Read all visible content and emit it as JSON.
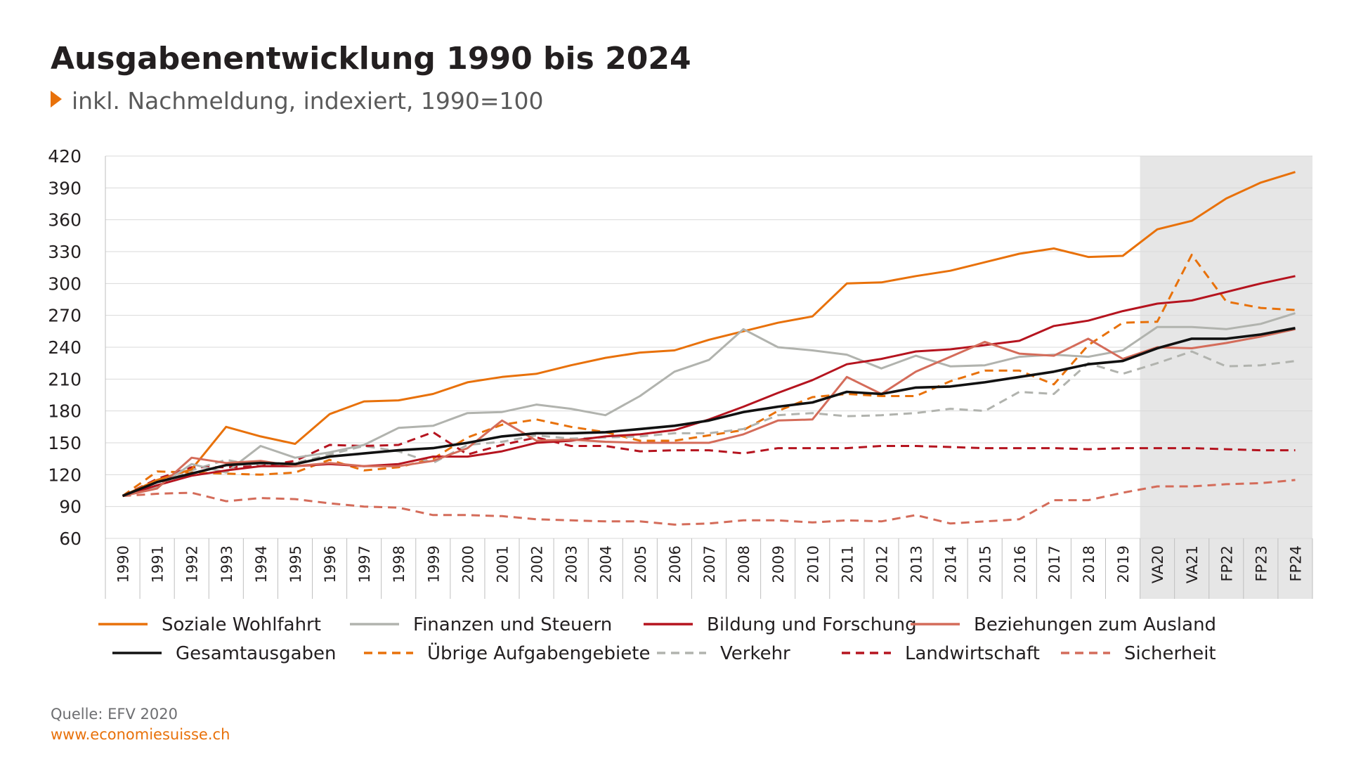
{
  "header": {
    "title": "Ausgabenentwicklung 1990 bis 2024",
    "subtitle": "inkl. Nachmeldung, indexiert, 1990=100"
  },
  "footer": {
    "source": "Quelle: EFV 2020",
    "website": "www.economiesuisse.ch"
  },
  "colors": {
    "orange": "#e8710a",
    "gray": "#b1b3ae",
    "darkred": "#b5141f",
    "salmon": "#d46c5a",
    "black": "#111111",
    "forecast_shade": "#e6e6e6"
  },
  "chart_data": {
    "type": "line",
    "title": "Ausgabenentwicklung 1990 bis 2024",
    "subtitle": "inkl. Nachmeldung, indexiert, 1990=100",
    "categories": [
      "1990",
      "1991",
      "1992",
      "1993",
      "1994",
      "1995",
      "1996",
      "1997",
      "1998",
      "1999",
      "2000",
      "2001",
      "2002",
      "2003",
      "2004",
      "2005",
      "2006",
      "2007",
      "2008",
      "2009",
      "2010",
      "2011",
      "2012",
      "2013",
      "2014",
      "2015",
      "2016",
      "2017",
      "2018",
      "2019",
      "VA20",
      "VA21",
      "FP22",
      "FP23",
      "FP24"
    ],
    "ylim": [
      60,
      420
    ],
    "yticks": [
      60,
      90,
      120,
      150,
      180,
      210,
      240,
      270,
      300,
      330,
      360,
      390,
      420
    ],
    "grid": true,
    "shaded_categories": [
      "VA20",
      "VA21",
      "FP22",
      "FP23",
      "FP24"
    ],
    "legend_position": "bottom",
    "series": [
      {
        "name": "Soziale Wohlfahrt",
        "color": "#e8710a",
        "dash": "solid",
        "values": [
          100,
          115,
          125,
          165,
          156,
          149,
          177,
          189,
          190,
          196,
          207,
          212,
          215,
          223,
          230,
          235,
          237,
          247,
          255,
          263,
          269,
          300,
          301,
          307,
          312,
          320,
          328,
          333,
          325,
          326,
          351,
          359,
          380,
          395,
          405
        ]
      },
      {
        "name": "Finanzen und Steuern",
        "color": "#b1b3ae",
        "dash": "solid",
        "values": [
          100,
          108,
          130,
          122,
          147,
          136,
          141,
          148,
          164,
          166,
          178,
          179,
          186,
          182,
          176,
          194,
          217,
          228,
          257,
          240,
          237,
          233,
          220,
          232,
          222,
          223,
          231,
          233,
          231,
          237,
          259,
          259,
          257,
          262,
          272
        ]
      },
      {
        "name": "Bildung und Forschung",
        "color": "#b5141f",
        "dash": "solid",
        "values": [
          100,
          110,
          119,
          124,
          128,
          128,
          130,
          128,
          130,
          137,
          137,
          142,
          150,
          152,
          156,
          158,
          162,
          172,
          184,
          197,
          209,
          224,
          229,
          236,
          238,
          242,
          246,
          260,
          265,
          274,
          281,
          284,
          292,
          300,
          307
        ]
      },
      {
        "name": "Beziehungen zum Ausland",
        "color": "#d46c5a",
        "dash": "solid",
        "values": [
          100,
          107,
          136,
          131,
          133,
          128,
          131,
          128,
          128,
          133,
          145,
          171,
          152,
          153,
          151,
          150,
          150,
          150,
          158,
          171,
          172,
          212,
          196,
          217,
          231,
          245,
          234,
          232,
          248,
          229,
          240,
          239,
          244,
          250,
          257
        ]
      },
      {
        "name": "Gesamtausgaben",
        "color": "#111111",
        "dash": "solid",
        "values": [
          100,
          113,
          121,
          129,
          131,
          130,
          137,
          140,
          143,
          145,
          150,
          156,
          159,
          159,
          160,
          163,
          166,
          171,
          179,
          184,
          188,
          198,
          196,
          202,
          203,
          207,
          212,
          217,
          224,
          227,
          239,
          248,
          248,
          252,
          258
        ]
      },
      {
        "name": "Übrige Aufgabengebiete",
        "color": "#e8710a",
        "dash": "dashed",
        "values": [
          100,
          123,
          122,
          121,
          120,
          122,
          134,
          124,
          127,
          135,
          155,
          167,
          172,
          165,
          160,
          152,
          152,
          157,
          162,
          180,
          193,
          196,
          194,
          194,
          208,
          218,
          218,
          205,
          242,
          263,
          264,
          327,
          283,
          277,
          275
        ]
      },
      {
        "name": "Verkehr",
        "color": "#b1b3ae",
        "dash": "dashed",
        "values": [
          100,
          110,
          124,
          134,
          128,
          131,
          139,
          147,
          142,
          131,
          148,
          151,
          157,
          154,
          155,
          156,
          159,
          159,
          163,
          176,
          178,
          175,
          176,
          178,
          182,
          180,
          198,
          196,
          225,
          215,
          225,
          236,
          222,
          223,
          227
        ]
      },
      {
        "name": "Landwirtschaft",
        "color": "#b5141f",
        "dash": "dashed",
        "values": [
          100,
          116,
          127,
          127,
          128,
          133,
          148,
          147,
          148,
          160,
          139,
          148,
          155,
          147,
          147,
          142,
          143,
          143,
          140,
          145,
          145,
          145,
          147,
          147,
          146,
          145,
          145,
          145,
          144,
          145,
          145,
          145,
          144,
          143,
          143
        ]
      },
      {
        "name": "Sicherheit",
        "color": "#d46c5a",
        "dash": "dashed",
        "values": [
          100,
          102,
          103,
          95,
          98,
          97,
          93,
          90,
          89,
          82,
          82,
          81,
          78,
          77,
          76,
          76,
          73,
          74,
          77,
          77,
          75,
          77,
          76,
          82,
          74,
          76,
          78,
          96,
          96,
          103,
          109,
          109,
          111,
          112,
          115
        ]
      }
    ]
  }
}
